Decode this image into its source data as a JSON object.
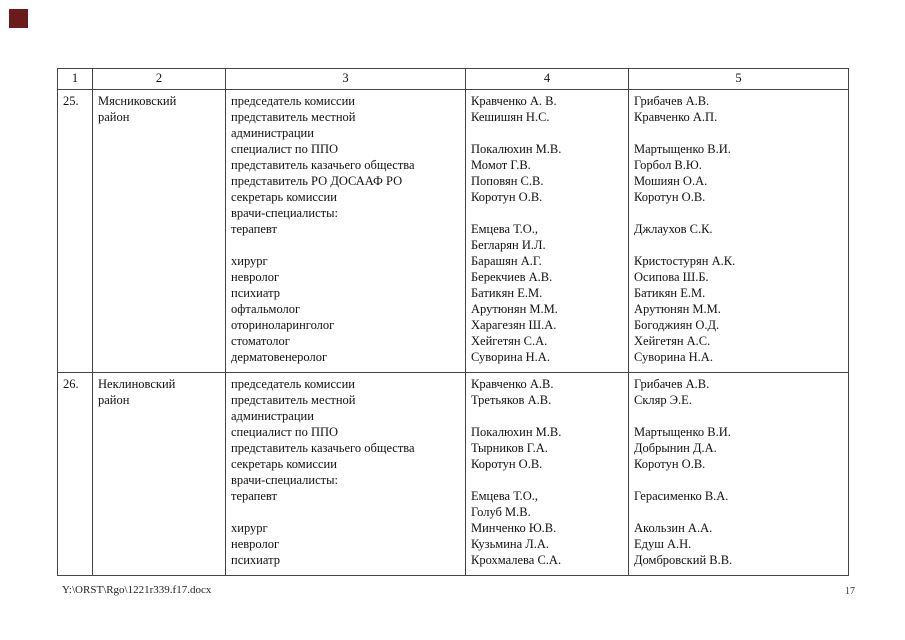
{
  "page": {
    "marker_color": "#6d1a1a",
    "footer_path": "Y:\\ORST\\Rgo\\1221r339.f17.docx",
    "page_number": "17"
  },
  "table": {
    "headers": [
      "1",
      "2",
      "3",
      "4",
      "5"
    ],
    "rows": [
      {
        "num": "25.",
        "district_lines": [
          "Мясниковский",
          "район"
        ],
        "col3": [
          "председатель комиссии",
          "представитель местной",
          "администрации",
          "специалист по ППО",
          "представитель казачьего общества",
          "представитель РО ДОСААФ РО",
          "секретарь комиссии",
          "врачи-специалисты:",
          "терапевт",
          "",
          "хирург",
          "невролог",
          "психиатр",
          "офтальмолог",
          "оториноларинголог",
          "стоматолог",
          "дерматовенеролог"
        ],
        "col4": [
          "Кравченко А. В.",
          "Кешишян Н.С.",
          "",
          "Покалюхин М.В.",
          "Момот Г.В.",
          "Поповян С.В.",
          "Коротун О.В.",
          "",
          "Емцева Т.О.,",
          "Бегларян И.Л.",
          "Барашян А.Г.",
          "Берекчиев А.В.",
          "Батикян Е.М.",
          "Арутюнян М.М.",
          "Харагезян Ш.А.",
          "Хейгетян С.А.",
          "Суворина Н.А."
        ],
        "col5": [
          "Грибачев А.В.",
          "Кравченко А.П.",
          "",
          "Мартыщенко В.И.",
          "Горбол В.Ю.",
          "Мошиян О.А.",
          "Коротун О.В.",
          "",
          "Джлаухов С.К.",
          "",
          "Кристостурян А.К.",
          "Осипова Ш.Б.",
          "Батикян Е.М.",
          "Арутюнян М.М.",
          "Богоджиян О.Д.",
          "Хейгетян А.С.",
          "Суворина Н.А."
        ]
      },
      {
        "num": "26.",
        "district_lines": [
          "Неклиновский",
          "район"
        ],
        "col3": [
          "председатель комиссии",
          "представитель местной",
          "администрации",
          "специалист по ППО",
          "представитель казачьего общества",
          "секретарь комиссии",
          "врачи-специалисты:",
          "терапевт",
          "",
          "хирург",
          "невролог",
          "психиатр"
        ],
        "col4": [
          "Кравченко А.В.",
          "Третьяков А.В.",
          "",
          "Покалюхин М.В.",
          "Тырников Г.А.",
          "Коротун О.В.",
          "",
          "Емцева Т.О.,",
          "Голуб М.В.",
          "Минченко Ю.В.",
          "Кузьмина Л.А.",
          "Крохмалева С.А."
        ],
        "col5": [
          "Грибачев А.В.",
          "Скляр Э.Е.",
          "",
          "Мартыщенко В.И.",
          "Добрынин Д.А.",
          "Коротун О.В.",
          "",
          "Герасименко В.А.",
          "",
          "Акользин А.А.",
          "Едуш А.Н.",
          "Домбровский В.В."
        ]
      }
    ]
  }
}
